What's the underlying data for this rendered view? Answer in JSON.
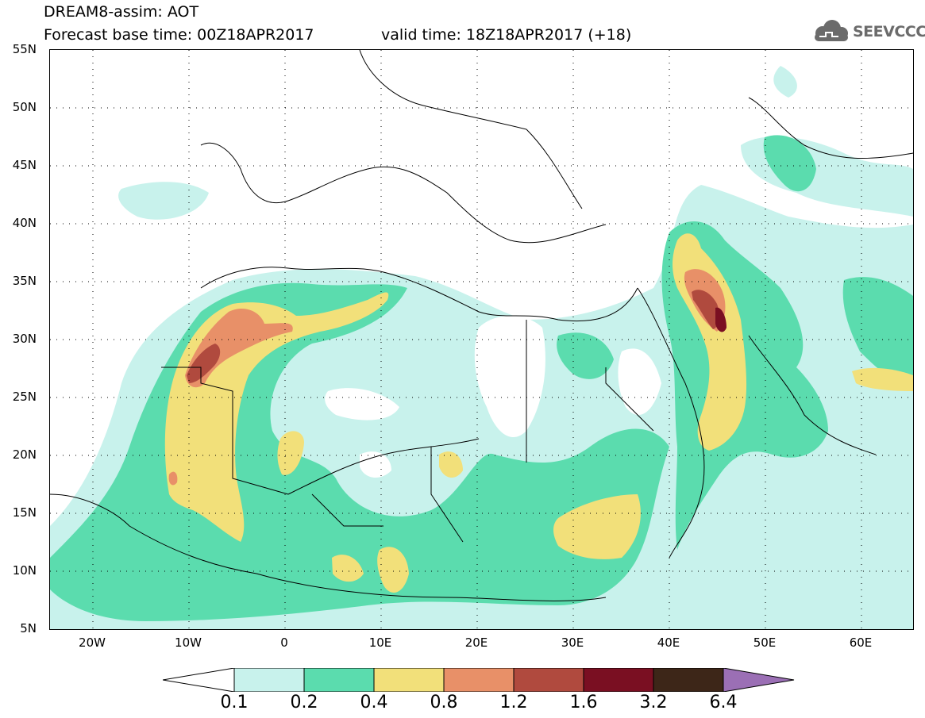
{
  "header": {
    "title_line1": "DREAM8-assim: AOT",
    "title_line2": "Forecast base time: 00Z18APR2017",
    "valid_time": "valid time: 18Z18APR2017 (+18)",
    "logo_text": "SEEVCCC",
    "logo_icon": "cloud-icon"
  },
  "axes": {
    "latitude_labels": [
      "55N",
      "50N",
      "45N",
      "40N",
      "35N",
      "30N",
      "25N",
      "20N",
      "15N",
      "10N",
      "5N"
    ],
    "longitude_labels": [
      "20W",
      "10W",
      "0",
      "10E",
      "20E",
      "30E",
      "40E",
      "50E",
      "60E"
    ]
  },
  "legend": {
    "levels": [
      "0.1",
      "0.2",
      "0.4",
      "0.8",
      "1.2",
      "1.6",
      "3.2",
      "6.4"
    ],
    "colors": [
      "#c8f2ec",
      "#5bdcae",
      "#f2e07a",
      "#e89068",
      "#b04a3e",
      "#7a0f22",
      "#3d2618",
      "#9b6fb5"
    ]
  }
}
